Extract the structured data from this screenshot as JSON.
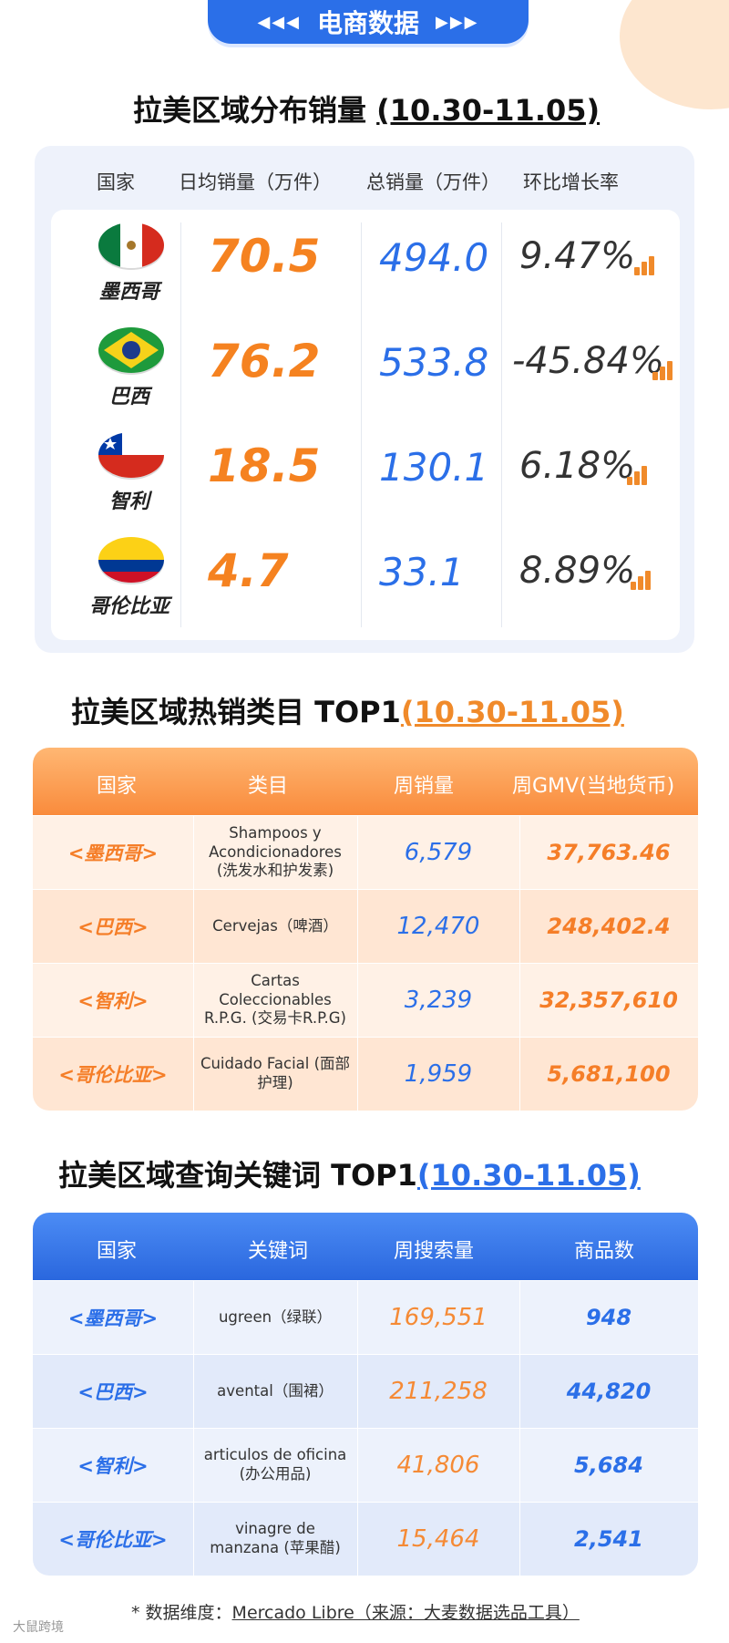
{
  "banner": {
    "title": "电商数据",
    "arrows_left": "◀◀◀",
    "arrows_right": "▶▶▶"
  },
  "section1": {
    "title": "拉美区域分布销量 ",
    "range": "(10.30-11.05)",
    "headers": [
      "国家",
      "日均销量（万件）",
      "总销量（万件）",
      "环比增长率"
    ],
    "rows": [
      {
        "country": "墨西哥",
        "flag": "mexico-flag",
        "daily": "70.5",
        "total": "494.0",
        "rate": "9.47%"
      },
      {
        "country": "巴西",
        "flag": "brazil-flag",
        "daily": "76.2",
        "total": "533.8",
        "rate": "-45.84%"
      },
      {
        "country": "智利",
        "flag": "chile-flag",
        "daily": "18.5",
        "total": "130.1",
        "rate": "6.18%"
      },
      {
        "country": "哥伦比亚",
        "flag": "colombia-flag",
        "daily": "4.7",
        "total": "33.1",
        "rate": "8.89%"
      }
    ]
  },
  "section2": {
    "title": "拉美区域热销类目 TOP1",
    "range": "(10.30-11.05)",
    "headers": [
      "国家",
      "类目",
      "周销量",
      "周GMV(当地货币)"
    ],
    "rows": [
      {
        "country": "<墨西哥>",
        "category": "Shampoos y Acondicionadores (洗发水和护发素)",
        "qty": "6,579",
        "gmv": "37,763.46"
      },
      {
        "country": "<巴西>",
        "category": "Cervejas（啤酒）",
        "qty": "12,470",
        "gmv": "248,402.4"
      },
      {
        "country": "<智利>",
        "category": "Cartas Coleccionables R.P.G. (交易卡R.P.G)",
        "qty": "3,239",
        "gmv": "32,357,610"
      },
      {
        "country": "<哥伦比亚>",
        "category": "Cuidado Facial (面部护理)",
        "qty": "1,959",
        "gmv": "5,681,100"
      }
    ]
  },
  "section3": {
    "title": "拉美区域查询关键词 TOP1",
    "range": "(10.30-11.05)",
    "headers": [
      "国家",
      "关键词",
      "周搜索量",
      "商品数"
    ],
    "rows": [
      {
        "country": "<墨西哥>",
        "keyword": "ugreen（绿联）",
        "searches": "169,551",
        "products": "948"
      },
      {
        "country": "<巴西>",
        "keyword": "avental（围裙）",
        "searches": "211,258",
        "products": "44,820"
      },
      {
        "country": "<智利>",
        "keyword": "articulos de oficina (办公用品)",
        "searches": "41,806",
        "products": "5,684"
      },
      {
        "country": "<哥伦比亚>",
        "keyword": "vinagre de manzana (苹果醋)",
        "searches": "15,464",
        "products": "2,541"
      }
    ]
  },
  "footer": {
    "prefix": "* 数据维度：",
    "source": "Mercado Libre（来源：大麦数据选品工具）"
  },
  "watermark": "大鼠跨境",
  "colors": {
    "blue": "#2b6fe8",
    "orange": "#f58220"
  }
}
